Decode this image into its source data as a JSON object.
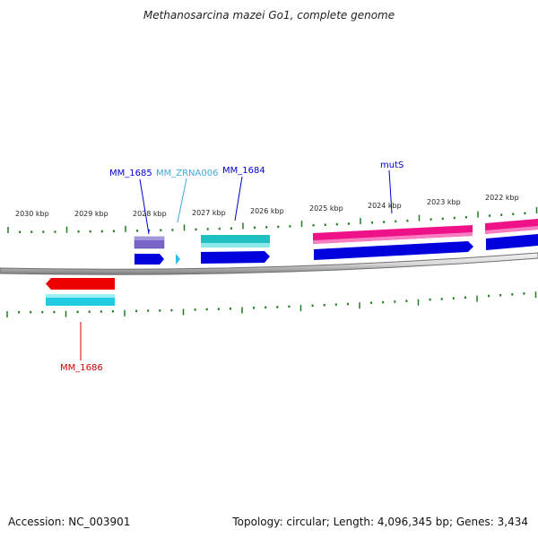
{
  "title": "Methanosarcina mazei Go1, complete genome",
  "footer": {
    "accession": "Accession: NC_003901",
    "summary": "Topology: circular; Length: 4,096,345 bp; Genes: 3,434"
  },
  "colors": {
    "backbone": "#808080",
    "tick": "#1f7a1f",
    "label_text": "#222222",
    "gene_blue": "#0000dd",
    "gene_purple": "#7a64c8",
    "gene_teal": "#20c0c0",
    "gene_pink": "#ee1188",
    "gene_red": "#ee0000",
    "gene_cyan": "#22cce0",
    "ncrna_light": "#33bbee",
    "label_red": "#cc0000",
    "label_lightblue": "#3fa9d8"
  },
  "scale_labels": [
    "2030 kbp",
    "2029 kbp",
    "2028 kbp",
    "2027 kbp",
    "2026 kbp",
    "2025 kbp",
    "2024 kbp",
    "2023 kbp",
    "2022 kbp"
  ],
  "gene_labels": [
    {
      "text": "MM_1685",
      "color": "#0000cc"
    },
    {
      "text": "MM_ZRNA006",
      "color": "#3fa9d8"
    },
    {
      "text": "MM_1684",
      "color": "#0000cc"
    },
    {
      "text": "mutS",
      "color": "#0000cc"
    },
    {
      "text": "MM_1686",
      "color": "#cc0000"
    }
  ]
}
